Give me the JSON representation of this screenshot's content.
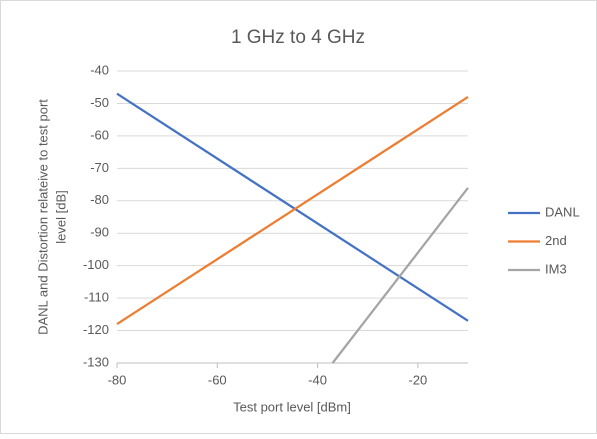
{
  "chart_data": {
    "type": "line",
    "title": "1 GHz to 4 GHz",
    "x_label": "Test port level [dBm]",
    "y_label": [
      "DANL  and Distortion relateive to test port",
      "level [dB]"
    ],
    "xlim": [
      -80,
      -10
    ],
    "xticks": [
      -80,
      -60,
      -40,
      -20
    ],
    "ylim": [
      -130,
      -40
    ],
    "yticks": [
      -130,
      -120,
      -110,
      -100,
      -90,
      -80,
      -70,
      -60,
      -50,
      -40
    ],
    "grid": true,
    "legend": "right",
    "series": [
      {
        "name": "DANL",
        "color": "#4472c4",
        "x": [
          -80,
          -10
        ],
        "values": [
          -47,
          -117
        ]
      },
      {
        "name": "2nd",
        "color": "#ed7d31",
        "x": [
          -80,
          -10
        ],
        "values": [
          -118,
          -48
        ]
      },
      {
        "name": "IM3",
        "color": "#a5a5a5",
        "x": [
          -37,
          -10
        ],
        "values": [
          -130,
          -76
        ]
      }
    ]
  }
}
